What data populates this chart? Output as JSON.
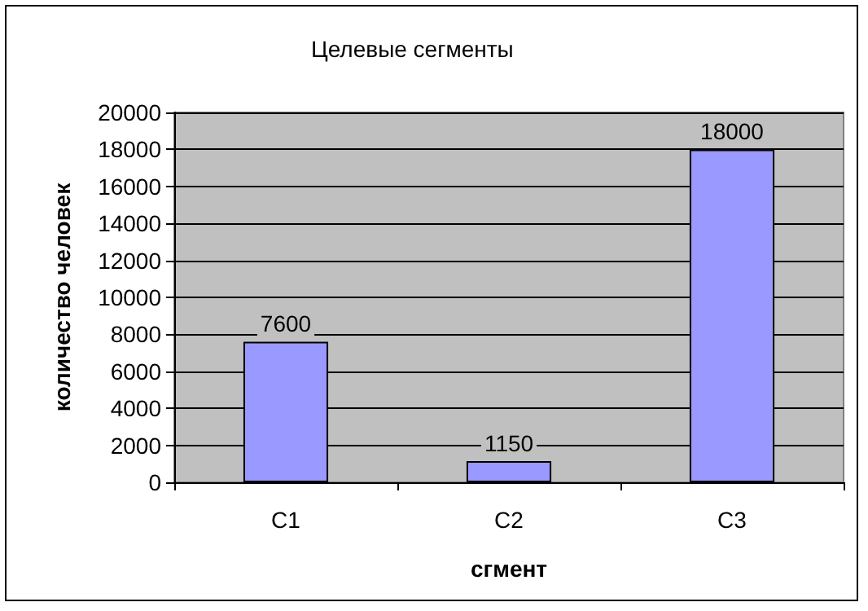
{
  "chart_data": {
    "type": "bar",
    "title": "Целевые сегменты",
    "xlabel": "сгмент",
    "ylabel": "количество человек",
    "categories": [
      "C1",
      "C2",
      "C3"
    ],
    "values": [
      7600,
      1150,
      18000
    ],
    "color": "#9999ff",
    "ylim": [
      0,
      20000
    ],
    "yticks": [
      0,
      2000,
      4000,
      6000,
      8000,
      10000,
      12000,
      14000,
      16000,
      18000,
      20000
    ],
    "grid": "y",
    "data_labels": true
  }
}
